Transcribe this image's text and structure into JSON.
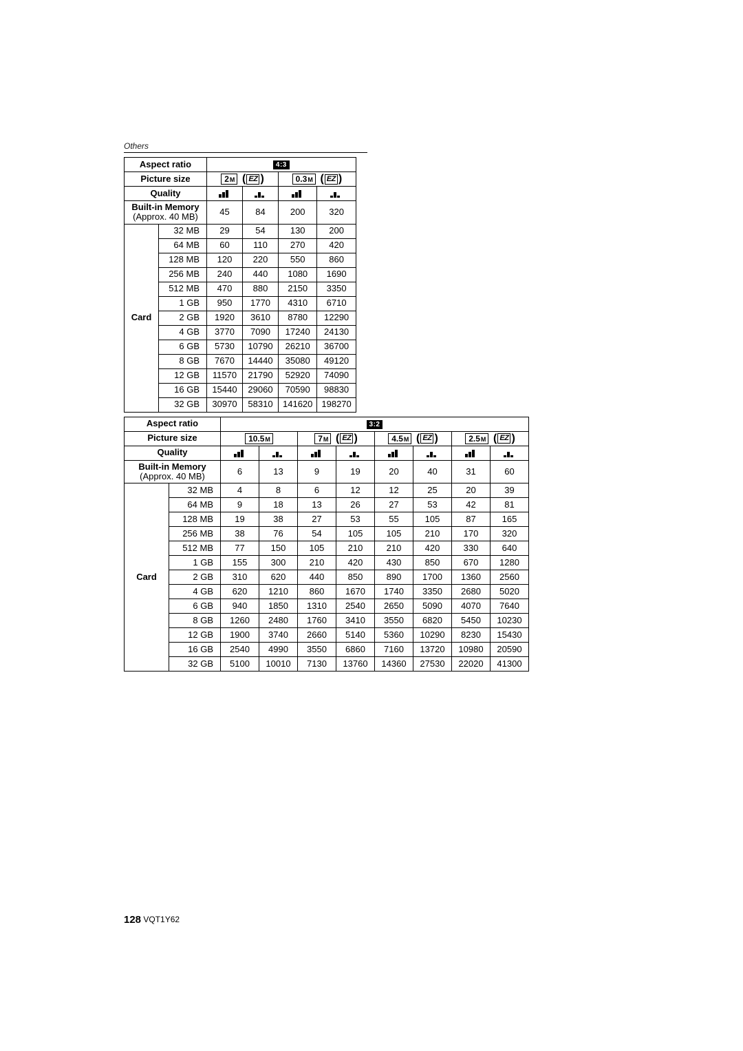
{
  "section_label": "Others",
  "labels": {
    "aspect_ratio": "Aspect ratio",
    "picture_size": "Picture size",
    "quality": "Quality",
    "built_in_memory": "Built-in Memory",
    "built_in_sub": "(Approx. 40 MB)",
    "card": "Card"
  },
  "icons": {
    "ratio_4_3": "4:3",
    "ratio_3_2": "3:2",
    "ez": "EZ",
    "fine_name": "quality-fine-icon",
    "std_name": "quality-standard-icon"
  },
  "table1": {
    "picture_sizes": [
      {
        "mp": "2",
        "ez": true
      },
      {
        "mp": "0.3",
        "ez": true
      }
    ],
    "built_in": [
      45,
      84,
      200,
      320
    ],
    "card_sizes": [
      "32 MB",
      "64 MB",
      "128 MB",
      "256 MB",
      "512 MB",
      "1 GB",
      "2 GB",
      "4 GB",
      "6 GB",
      "8 GB",
      "12 GB",
      "16 GB",
      "32 GB"
    ],
    "rows": [
      [
        29,
        54,
        130,
        200
      ],
      [
        60,
        110,
        270,
        420
      ],
      [
        120,
        220,
        550,
        860
      ],
      [
        240,
        440,
        1080,
        1690
      ],
      [
        470,
        880,
        2150,
        3350
      ],
      [
        950,
        1770,
        4310,
        6710
      ],
      [
        1920,
        3610,
        8780,
        12290
      ],
      [
        3770,
        7090,
        17240,
        24130
      ],
      [
        5730,
        10790,
        26210,
        36700
      ],
      [
        7670,
        14440,
        35080,
        49120
      ],
      [
        11570,
        21790,
        52920,
        74090
      ],
      [
        15440,
        29060,
        70590,
        98830
      ],
      [
        30970,
        58310,
        141620,
        198270
      ]
    ]
  },
  "table2": {
    "picture_sizes": [
      {
        "mp": "10.5",
        "ez": false
      },
      {
        "mp": "7",
        "ez": true
      },
      {
        "mp": "4.5",
        "ez": true
      },
      {
        "mp": "2.5",
        "ez": true
      }
    ],
    "built_in": [
      6,
      13,
      9,
      19,
      20,
      40,
      31,
      60
    ],
    "card_sizes": [
      "32 MB",
      "64 MB",
      "128 MB",
      "256 MB",
      "512 MB",
      "1 GB",
      "2 GB",
      "4 GB",
      "6 GB",
      "8 GB",
      "12 GB",
      "16 GB",
      "32 GB"
    ],
    "rows": [
      [
        4,
        8,
        6,
        12,
        12,
        25,
        20,
        39
      ],
      [
        9,
        18,
        13,
        26,
        27,
        53,
        42,
        81
      ],
      [
        19,
        38,
        27,
        53,
        55,
        105,
        87,
        165
      ],
      [
        38,
        76,
        54,
        105,
        105,
        210,
        170,
        320
      ],
      [
        77,
        150,
        105,
        210,
        210,
        420,
        330,
        640
      ],
      [
        155,
        300,
        210,
        420,
        430,
        850,
        670,
        1280
      ],
      [
        310,
        620,
        440,
        850,
        890,
        1700,
        1360,
        2560
      ],
      [
        620,
        1210,
        860,
        1670,
        1740,
        3350,
        2680,
        5020
      ],
      [
        940,
        1850,
        1310,
        2540,
        2650,
        5090,
        4070,
        7640
      ],
      [
        1260,
        2480,
        1760,
        3410,
        3550,
        6820,
        5450,
        10230
      ],
      [
        1900,
        3740,
        2660,
        5140,
        5360,
        10290,
        8230,
        15430
      ],
      [
        2540,
        4990,
        3550,
        6860,
        7160,
        13720,
        10980,
        20590
      ],
      [
        5100,
        10010,
        7130,
        13760,
        14360,
        27530,
        22020,
        41300
      ]
    ]
  },
  "footer": {
    "page": "128",
    "doc": "VQT1Y62"
  },
  "style": {
    "text_color": "#000000",
    "bg": "#ffffff",
    "border": "#000000"
  }
}
